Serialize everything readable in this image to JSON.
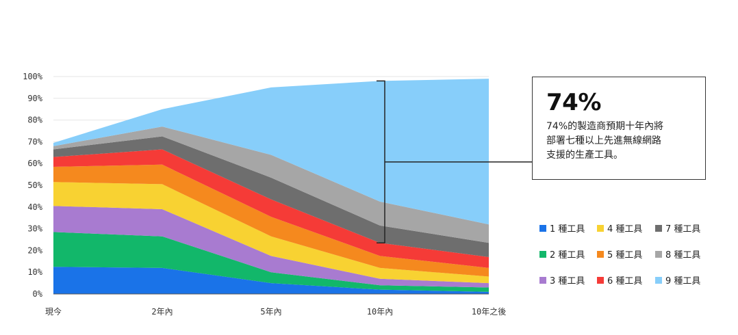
{
  "chart_data": {
    "type": "area",
    "stacked": true,
    "categories": [
      "現今",
      "2年內",
      "5年內",
      "10年內",
      "10年之後"
    ],
    "y_tick_labels": [
      "0%",
      "10%",
      "20%",
      "30%",
      "40%",
      "50%",
      "60%",
      "70%",
      "80%",
      "90%",
      "100%"
    ],
    "ylim": [
      0,
      100
    ],
    "grid": true,
    "legend_position": "right",
    "series": [
      {
        "name": "1 種工具",
        "color": "#1a73e8",
        "values": [
          12.5,
          12,
          5,
          2,
          1
        ]
      },
      {
        "name": "2 種工具",
        "color": "#12b76a",
        "values": [
          16,
          14.5,
          5,
          2,
          2
        ]
      },
      {
        "name": "3 種工具",
        "color": "#a87bd0",
        "values": [
          12,
          12.5,
          7.5,
          3,
          2
        ]
      },
      {
        "name": "4 種工具",
        "color": "#f8d232",
        "values": [
          11,
          11.5,
          9,
          5,
          3
        ]
      },
      {
        "name": "5 種工具",
        "color": "#f5891e",
        "values": [
          7,
          9,
          9,
          5.5,
          4
        ]
      },
      {
        "name": "6 種工具",
        "color": "#f53b37",
        "values": [
          4.5,
          7,
          8,
          6,
          5
        ]
      },
      {
        "name": "7 種工具",
        "color": "#6e6e6e",
        "values": [
          3.5,
          6,
          10,
          8,
          6.5
        ]
      },
      {
        "name": "8 種工具",
        "color": "#a6a6a6",
        "values": [
          1.5,
          4.5,
          10.5,
          11,
          8.5
        ]
      },
      {
        "name": "9 種工具",
        "color": "#87cefa",
        "values": [
          1.5,
          8,
          31,
          55.5,
          67
        ]
      }
    ]
  },
  "callout": {
    "value": "74%",
    "text": "74%的製造商預期十年內將\n部署七種以上先進無線網路\n支援的生產工具。"
  }
}
